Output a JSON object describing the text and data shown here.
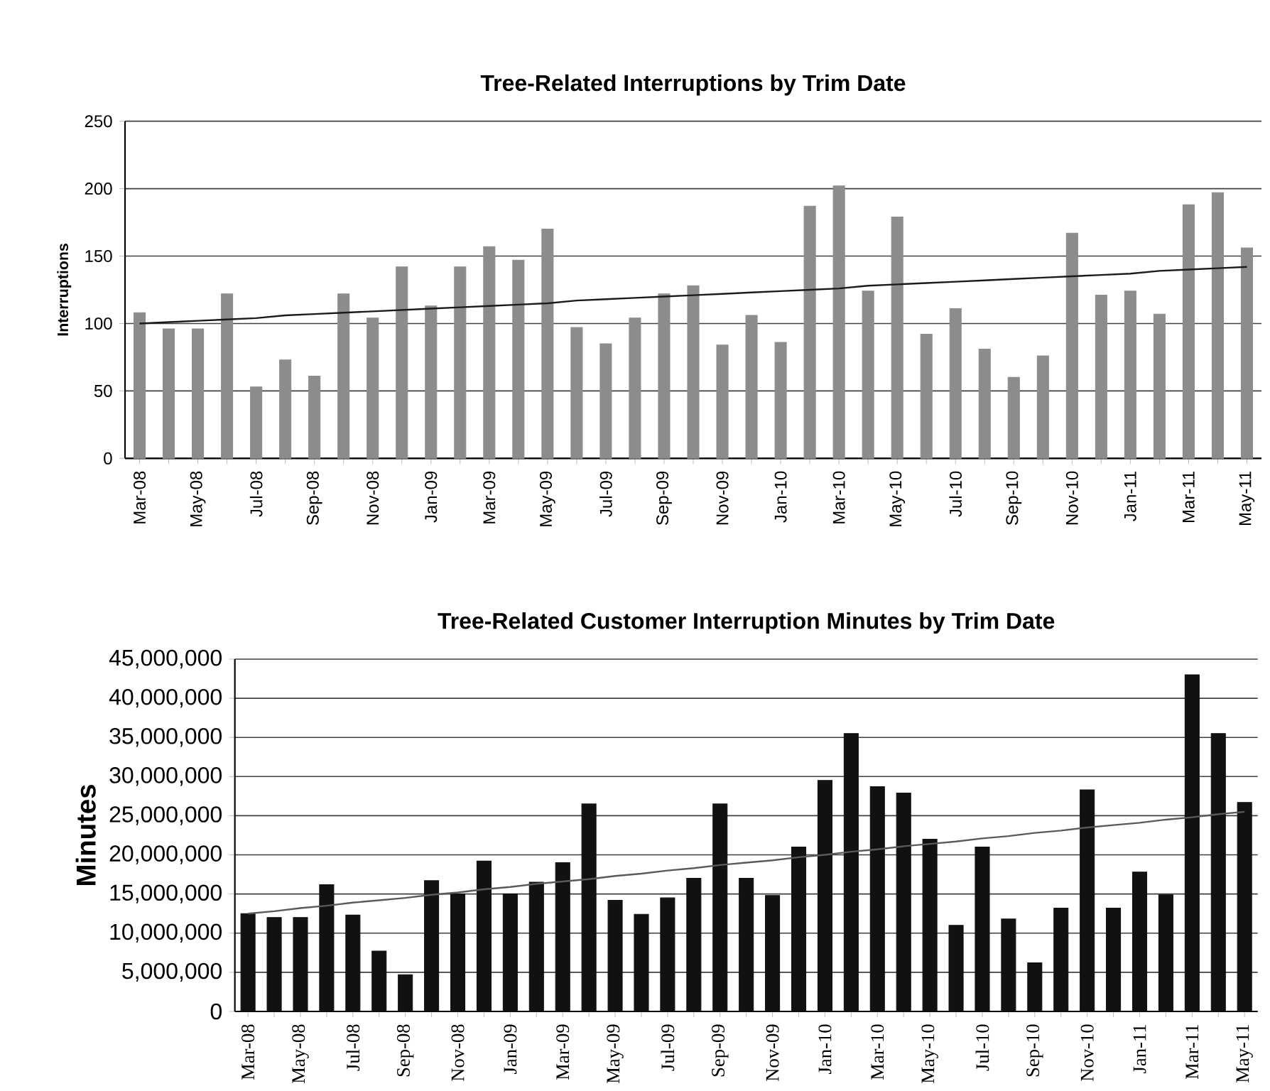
{
  "chart_data": [
    {
      "type": "bar",
      "title": "Tree-Related Interruptions by Trim Date",
      "ylabel": "Interruptions",
      "categories": [
        "Mar-08",
        null,
        "May-08",
        null,
        "Jul-08",
        null,
        "Sep-08",
        null,
        "Nov-08",
        null,
        "Jan-09",
        null,
        "Mar-09",
        null,
        "May-09",
        null,
        "Jul-09",
        null,
        "Sep-09",
        null,
        "Nov-09",
        null,
        "Jan-10",
        null,
        "Mar-10",
        null,
        "May-10",
        null,
        "Jul-10",
        null,
        "Sep-10",
        null,
        "Nov-10",
        null,
        "Jan-11",
        null,
        "Mar-11",
        null,
        "May-11"
      ],
      "series": [
        {
          "color": "#8c8c8c",
          "values": [
            108,
            96,
            96,
            122,
            53,
            73,
            61,
            122,
            104,
            142,
            113,
            142,
            157,
            147,
            170,
            97,
            85,
            104,
            122,
            128,
            84,
            106,
            86,
            187,
            202,
            124,
            179,
            92,
            111,
            81,
            60,
            76,
            167,
            121,
            124,
            107,
            188,
            197,
            156
          ]
        },
        {
          "type": "line",
          "color": "#1a1a1a",
          "values": [
            100,
            101,
            102,
            103,
            104,
            106,
            107,
            108,
            109,
            110,
            111,
            112,
            113,
            114,
            115,
            117,
            118,
            119,
            120,
            121,
            122,
            123,
            124,
            125,
            126,
            128,
            129,
            130,
            131,
            132,
            133,
            134,
            135,
            136,
            137,
            139,
            140,
            141,
            142
          ]
        }
      ],
      "ylim": [
        0,
        250
      ],
      "yticks": [
        0,
        50,
        100,
        150,
        200,
        250
      ],
      "grid": "y",
      "marker": "none"
    },
    {
      "type": "bar",
      "title": "Tree-Related Customer Interruption Minutes by Trim Date",
      "ylabel": "Minutes",
      "categories": [
        "Mar-08",
        null,
        "May-08",
        null,
        "Jul-08",
        null,
        "Sep-08",
        null,
        "Nov-08",
        null,
        "Jan-09",
        null,
        "Mar-09",
        null,
        "May-09",
        null,
        "Jul-09",
        null,
        "Sep-09",
        null,
        "Nov-09",
        null,
        "Jan-10",
        null,
        "Mar-10",
        null,
        "May-10",
        null,
        "Jul-10",
        null,
        "Sep-10",
        null,
        "Nov-10",
        null,
        "Jan-11",
        null,
        "Mar-11",
        null,
        "May-11"
      ],
      "series": [
        {
          "color": "#111111",
          "values": [
            12500000,
            12000000,
            12000000,
            16200000,
            12300000,
            7700000,
            4700000,
            16700000,
            15000000,
            19200000,
            15000000,
            16500000,
            19000000,
            26500000,
            14200000,
            12400000,
            14500000,
            17000000,
            26500000,
            17000000,
            14800000,
            21000000,
            29500000,
            35500000,
            28700000,
            27900000,
            22000000,
            11000000,
            21000000,
            11800000,
            6200000,
            13200000,
            28300000,
            13200000,
            17800000,
            14900000,
            43000000,
            35500000,
            26700000
          ]
        },
        {
          "type": "line",
          "color": "#5a5a5a",
          "values": [
            12500000,
            12800000,
            13200000,
            13500000,
            13900000,
            14200000,
            14500000,
            14900000,
            15200000,
            15600000,
            15900000,
            16300000,
            16600000,
            16900000,
            17300000,
            17600000,
            18000000,
            18300000,
            18700000,
            19000000,
            19300000,
            19700000,
            20000000,
            20400000,
            20700000,
            21100000,
            21400000,
            21700000,
            22100000,
            22400000,
            22800000,
            23100000,
            23500000,
            23800000,
            24100000,
            24500000,
            24800000,
            25200000,
            25500000
          ]
        }
      ],
      "ylim": [
        0,
        45000000
      ],
      "yticks": [
        0,
        {
          "value": 5000000,
          "label": "5,000,000"
        },
        {
          "value": 10000000,
          "label": "10,000,000"
        },
        {
          "value": 15000000,
          "label": "15,000,000"
        },
        {
          "value": 20000000,
          "label": "20,000,000"
        },
        {
          "value": 25000000,
          "label": "25,000,000"
        },
        {
          "value": 30000000,
          "label": "30,000,000"
        },
        {
          "value": 35000000,
          "label": "35,000,000"
        },
        {
          "value": 40000000,
          "label": "40,000,000"
        },
        {
          "value": 45000000,
          "label": "45,000,000"
        }
      ],
      "grid": "y",
      "marker": "none"
    }
  ]
}
